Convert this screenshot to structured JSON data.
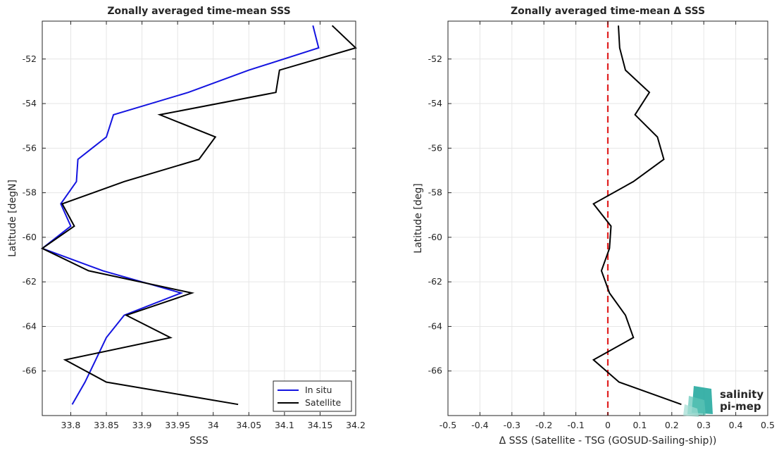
{
  "chart_data": [
    {
      "type": "line",
      "title": "Zonally averaged time-mean SSS",
      "xlabel": "SSS",
      "ylabel": "Latitude [degN]",
      "xlim": [
        33.76,
        34.2
      ],
      "ylim": [
        -68,
        -50.3
      ],
      "xticks": [
        33.8,
        33.85,
        33.9,
        33.95,
        34,
        34.05,
        34.1,
        34.15,
        34.2
      ],
      "xtick_labels": [
        "33.8",
        "33.85",
        "33.9",
        "33.95",
        "34",
        "34.05",
        "34.1",
        "34.15",
        "34.2"
      ],
      "yticks": [
        -66,
        -64,
        -62,
        -60,
        -58,
        -56,
        -54,
        -52
      ],
      "ytick_labels": [
        "-66",
        "-64",
        "-62",
        "-60",
        "-58",
        "-56",
        "-54",
        "-52"
      ],
      "grid": true,
      "legend_position": "bottom-right",
      "series": [
        {
          "name": "In situ",
          "color": "#1414e0",
          "points": [
            [
              34.14,
              -50.5
            ],
            [
              34.148,
              -51.5
            ],
            [
              34.05,
              -52.5
            ],
            [
              33.965,
              -53.5
            ],
            [
              33.86,
              -54.5
            ],
            [
              33.85,
              -55.5
            ],
            [
              33.81,
              -56.5
            ],
            [
              33.808,
              -57.5
            ],
            [
              33.786,
              -58.5
            ],
            [
              33.8,
              -59.5
            ],
            [
              33.76,
              -60.5
            ],
            [
              33.845,
              -61.5
            ],
            [
              33.955,
              -62.5
            ],
            [
              33.875,
              -63.5
            ],
            [
              33.85,
              -64.5
            ],
            [
              33.835,
              -65.5
            ],
            [
              33.82,
              -66.5
            ],
            [
              33.802,
              -67.5
            ]
          ]
        },
        {
          "name": "Satellite",
          "color": "#000000",
          "points": [
            [
              34.167,
              -50.5
            ],
            [
              34.2,
              -51.5
            ],
            [
              34.093,
              -52.5
            ],
            [
              34.088,
              -53.5
            ],
            [
              33.925,
              -54.5
            ],
            [
              34.003,
              -55.5
            ],
            [
              33.98,
              -56.5
            ],
            [
              33.875,
              -57.5
            ],
            [
              33.788,
              -58.5
            ],
            [
              33.805,
              -59.5
            ],
            [
              33.76,
              -60.5
            ],
            [
              33.825,
              -61.5
            ],
            [
              33.97,
              -62.5
            ],
            [
              33.878,
              -63.5
            ],
            [
              33.94,
              -64.5
            ],
            [
              33.792,
              -65.5
            ],
            [
              33.85,
              -66.5
            ],
            [
              34.035,
              -67.5
            ]
          ]
        }
      ]
    },
    {
      "type": "line",
      "title": "Zonally averaged time-mean Δ SSS",
      "xlabel": "Δ SSS (Satellite - TSG (GOSUD-Sailing-ship))",
      "ylabel": "Latitude [deg]",
      "xlim": [
        -0.5,
        0.5
      ],
      "ylim": [
        -68,
        -50.3
      ],
      "xticks": [
        -0.5,
        -0.4,
        -0.3,
        -0.2,
        -0.1,
        0,
        0.1,
        0.2,
        0.3,
        0.4,
        0.5
      ],
      "xtick_labels": [
        "-0.5",
        "-0.4",
        "-0.3",
        "-0.2",
        "-0.1",
        "0",
        "0.1",
        "0.2",
        "0.3",
        "0.4",
        "0.5"
      ],
      "yticks": [
        -66,
        -64,
        -62,
        -60,
        -58,
        -56,
        -54,
        -52
      ],
      "ytick_labels": [
        "-66",
        "-64",
        "-62",
        "-60",
        "-58",
        "-56",
        "-54",
        "-52"
      ],
      "grid": true,
      "reference_line": {
        "x": 0,
        "color": "#e02020",
        "style": "dashed"
      },
      "series": [
        {
          "name": "",
          "color": "#000000",
          "points": [
            [
              0.033,
              -50.5
            ],
            [
              0.037,
              -51.5
            ],
            [
              0.055,
              -52.5
            ],
            [
              0.13,
              -53.5
            ],
            [
              0.085,
              -54.5
            ],
            [
              0.155,
              -55.5
            ],
            [
              0.175,
              -56.5
            ],
            [
              0.08,
              -57.5
            ],
            [
              -0.045,
              -58.5
            ],
            [
              0.01,
              -59.5
            ],
            [
              0.005,
              -60.5
            ],
            [
              -0.02,
              -61.5
            ],
            [
              0.005,
              -62.5
            ],
            [
              0.055,
              -63.5
            ],
            [
              0.08,
              -64.5
            ],
            [
              -0.045,
              -65.5
            ],
            [
              0.035,
              -66.5
            ],
            [
              0.23,
              -67.5
            ]
          ]
        }
      ]
    }
  ],
  "logo": {
    "line1": "salinity",
    "line2": "pi-mep",
    "color": "#1aa59a"
  }
}
